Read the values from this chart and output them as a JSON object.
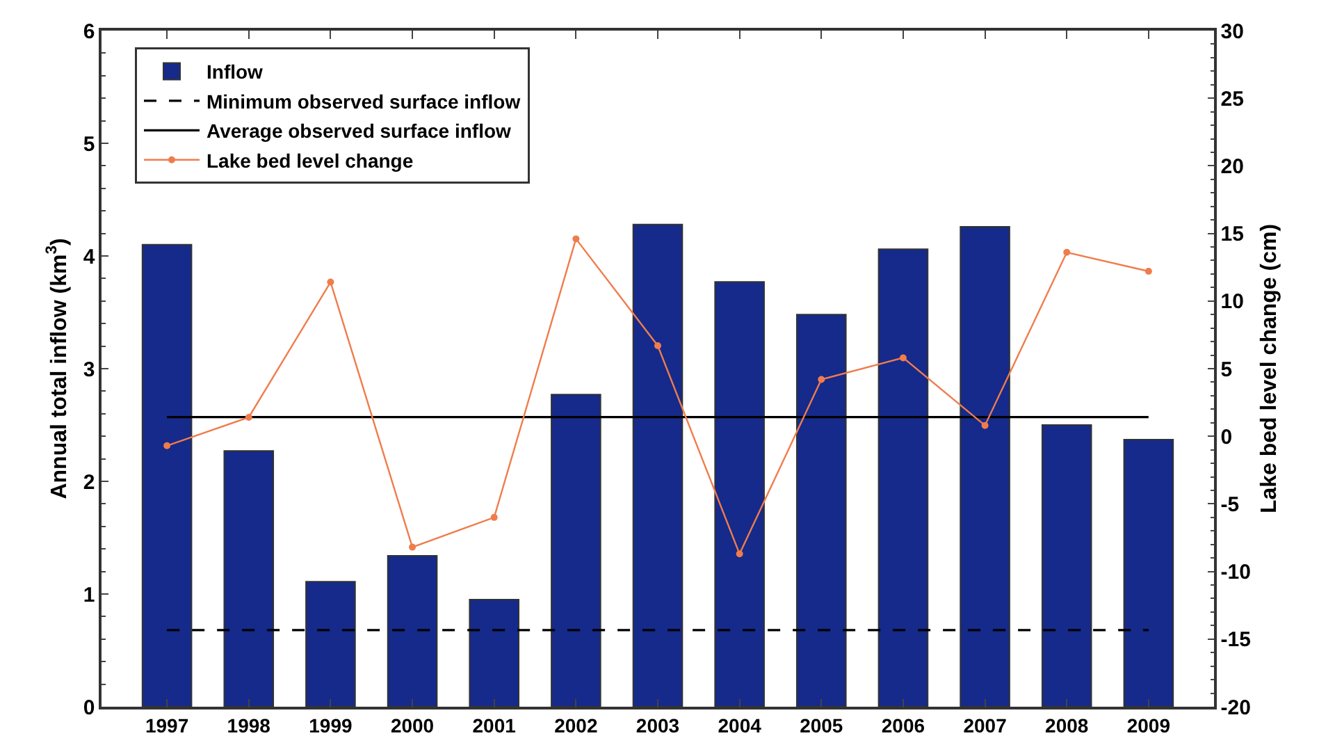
{
  "chart_data": {
    "type": "bar",
    "categories": [
      "1997",
      "1998",
      "1999",
      "2000",
      "2001",
      "2002",
      "2003",
      "2004",
      "2005",
      "2006",
      "2007",
      "2008",
      "2009"
    ],
    "ylabel": "Annual total inflow (km$^{3}$)",
    "y2label": "Lake bed level change (cm)",
    "ylim": [
      0,
      6
    ],
    "yticks": [
      0,
      1,
      2,
      3,
      4,
      5,
      6
    ],
    "y2lim": [
      -20,
      30
    ],
    "y2ticks": [
      -20,
      -15,
      -10,
      -5,
      0,
      5,
      10,
      15,
      20,
      25,
      30
    ],
    "legend": "top left",
    "series": [
      {
        "name": "Inflow",
        "color": "#152a8a",
        "values": [
          4.1,
          2.27,
          1.11,
          1.34,
          0.95,
          2.77,
          4.28,
          3.77,
          3.48,
          4.06,
          4.26,
          2.5,
          2.37
        ]
      },
      {
        "name": "Minimum observed surface inflow",
        "type": "line",
        "color": "#000000",
        "line_style": "dashed",
        "marker": "none",
        "values": [
          0.68,
          0.68,
          0.68,
          0.68,
          0.68,
          0.68,
          0.68,
          0.68,
          0.68,
          0.68,
          0.68,
          0.68,
          0.68
        ]
      },
      {
        "name": "Average observed surface inflow",
        "type": "line",
        "color": "#000000",
        "line_style": "solid",
        "marker": "none",
        "values": [
          2.57,
          2.57,
          2.57,
          2.57,
          2.57,
          2.57,
          2.57,
          2.57,
          2.57,
          2.57,
          2.57,
          2.57,
          2.57
        ]
      },
      {
        "name": "Lake bed level change",
        "type": "line",
        "axis": "y2",
        "color": "#f07c4c",
        "line_style": "solid",
        "marker": "circle",
        "values": [
          -0.7,
          1.4,
          11.4,
          -8.2,
          -6.0,
          14.6,
          6.7,
          -8.7,
          4.2,
          5.8,
          0.8,
          13.6,
          12.2
        ]
      }
    ]
  }
}
